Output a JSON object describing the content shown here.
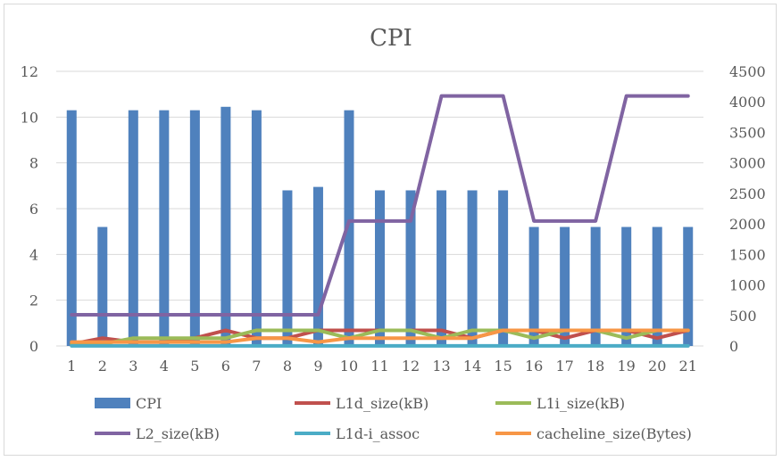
{
  "chart_data": {
    "type": "bar",
    "title": "CPI",
    "categories": [
      "1",
      "2",
      "3",
      "4",
      "5",
      "6",
      "7",
      "8",
      "9",
      "10",
      "11",
      "12",
      "13",
      "14",
      "15",
      "16",
      "17",
      "18",
      "19",
      "20",
      "21"
    ],
    "y_left": {
      "min": 0,
      "max": 12,
      "ticks": [
        "0",
        "2",
        "4",
        "6",
        "8",
        "10",
        "12"
      ]
    },
    "y_right": {
      "min": 0,
      "max": 4500,
      "ticks": [
        "0",
        "500",
        "1000",
        "1500",
        "2000",
        "2500",
        "3000",
        "3500",
        "4000",
        "4500"
      ]
    },
    "grid": true,
    "legend_position": "bottom",
    "series": [
      {
        "name": "CPI",
        "type": "bar",
        "axis": "left",
        "color": "#4f81bd",
        "values": [
          10.3,
          5.2,
          10.3,
          10.3,
          10.3,
          10.45,
          10.3,
          6.8,
          6.95,
          10.3,
          6.8,
          6.8,
          6.8,
          6.8,
          6.8,
          5.2,
          5.2,
          5.2,
          5.2,
          5.2,
          5.2
        ]
      },
      {
        "name": "L1d_size(kB)",
        "type": "line",
        "axis": "right",
        "color": "#c0504d",
        "values": [
          32,
          128,
          64,
          64,
          128,
          256,
          128,
          128,
          256,
          256,
          256,
          256,
          256,
          128,
          256,
          256,
          128,
          256,
          256,
          128,
          256
        ]
      },
      {
        "name": "L1i_size(kB)",
        "type": "line",
        "axis": "right",
        "color": "#9bbb59",
        "values": [
          32,
          32,
          128,
          128,
          128,
          128,
          256,
          256,
          256,
          128,
          256,
          256,
          128,
          256,
          256,
          128,
          256,
          256,
          128,
          256,
          256
        ]
      },
      {
        "name": "L2_size(kB)",
        "type": "line",
        "axis": "right",
        "color": "#8064a2",
        "values": [
          512,
          512,
          512,
          512,
          512,
          512,
          512,
          512,
          512,
          2048,
          2048,
          2048,
          4096,
          4096,
          4096,
          2048,
          2048,
          2048,
          4096,
          4096,
          4096
        ]
      },
      {
        "name": "L1d-i_assoc",
        "type": "line",
        "axis": "right",
        "color": "#4bacc6",
        "values": [
          2,
          2,
          2,
          2,
          2,
          2,
          2,
          2,
          2,
          2,
          2,
          2,
          2,
          2,
          2,
          2,
          2,
          2,
          2,
          2,
          2
        ]
      },
      {
        "name": "cacheline_size(Bytes)",
        "type": "line",
        "axis": "right",
        "color": "#f79646",
        "values": [
          64,
          64,
          64,
          64,
          64,
          64,
          128,
          128,
          64,
          128,
          128,
          128,
          128,
          128,
          256,
          256,
          256,
          256,
          256,
          256,
          256
        ]
      }
    ]
  }
}
